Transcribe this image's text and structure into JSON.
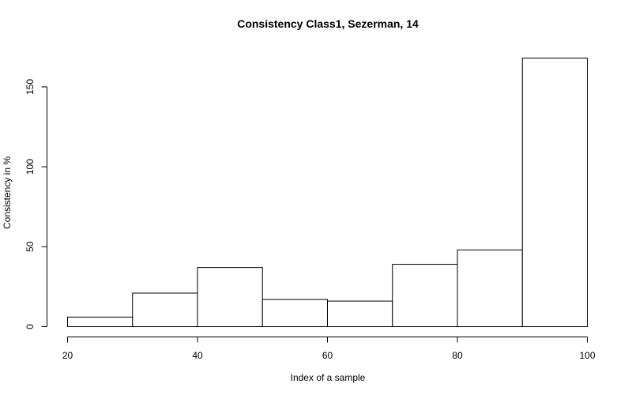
{
  "chart_data": {
    "type": "bar",
    "title": "Consistency Class1, Sezerman, 14",
    "xlabel": "Index of a sample",
    "ylabel": "Consistency in %",
    "bins": [
      [
        20,
        30
      ],
      [
        30,
        40
      ],
      [
        40,
        50
      ],
      [
        50,
        60
      ],
      [
        60,
        70
      ],
      [
        70,
        80
      ],
      [
        80,
        90
      ],
      [
        90,
        100
      ]
    ],
    "values": [
      6,
      21,
      37,
      17,
      16,
      39,
      48,
      168
    ],
    "xlim": [
      20,
      100
    ],
    "ylim": [
      0,
      168
    ],
    "x_ticks": [
      20,
      40,
      60,
      80,
      100
    ],
    "y_ticks": [
      0,
      50,
      100,
      150
    ],
    "grid": false
  }
}
